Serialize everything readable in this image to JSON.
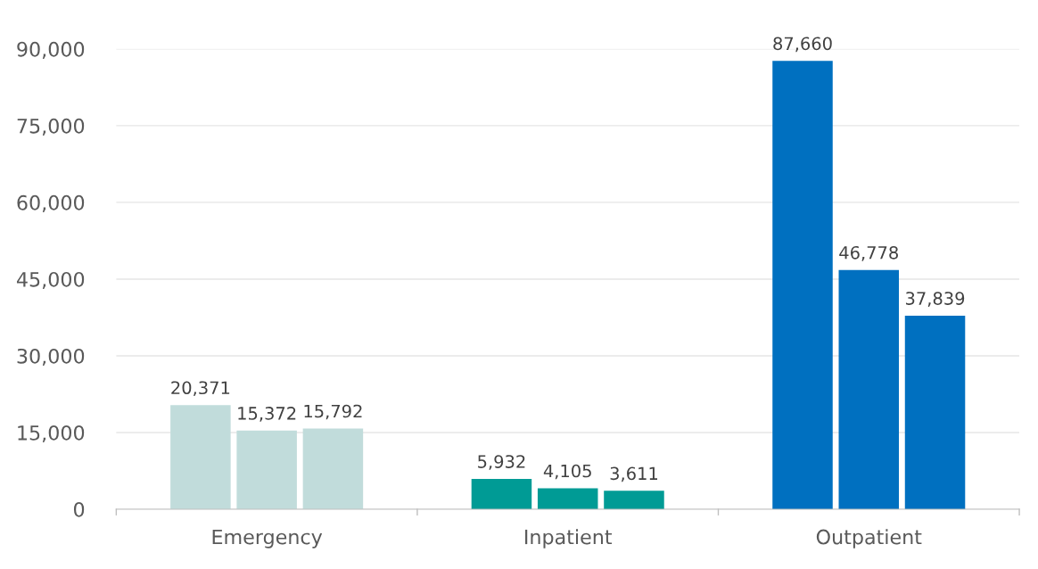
{
  "chart_data": {
    "type": "bar",
    "categories": [
      "Emergency",
      "Inpatient",
      "Outpatient"
    ],
    "series": [
      {
        "colors": [
          "#c1dcdb",
          "#009b95",
          "#0070c0"
        ],
        "values": [
          20371,
          5932,
          87660
        ],
        "value_labels": [
          "20,371",
          "5,932",
          "87,660"
        ]
      },
      {
        "colors": [
          "#c1dcdb",
          "#009b95",
          "#0070c0"
        ],
        "values": [
          15372,
          4105,
          46778
        ],
        "value_labels": [
          "15,372",
          "4,105",
          "46,778"
        ]
      },
      {
        "colors": [
          "#c1dcdb",
          "#009b95",
          "#0070c0"
        ],
        "values": [
          15792,
          3611,
          37839
        ],
        "value_labels": [
          "15,792",
          "3,611",
          "37,839"
        ]
      }
    ],
    "ylim": [
      0,
      90000
    ],
    "yticks": [
      {
        "value": 0,
        "label": "0"
      },
      {
        "value": 15000,
        "label": "15,000"
      },
      {
        "value": 30000,
        "label": "30,000"
      },
      {
        "value": 45000,
        "label": "45,000"
      },
      {
        "value": 60000,
        "label": "60,000"
      },
      {
        "value": 75000,
        "label": "75,000"
      },
      {
        "value": 90000,
        "label": "90,000"
      }
    ],
    "grid": "y",
    "legend": false
  }
}
